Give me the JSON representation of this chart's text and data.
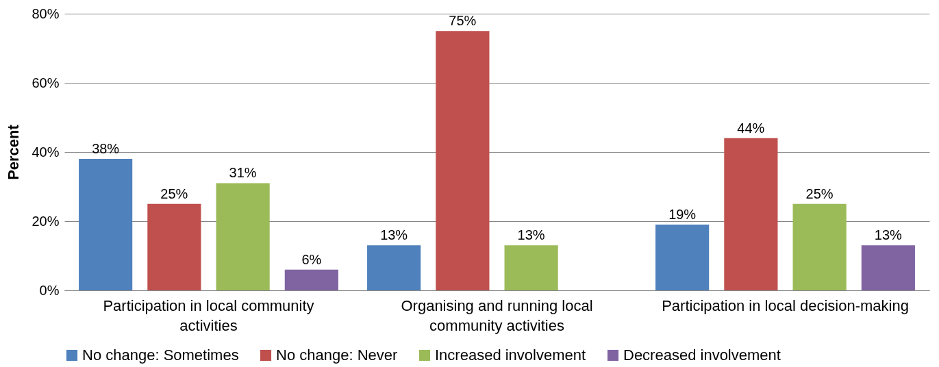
{
  "chart_data": {
    "type": "bar",
    "ylabel": "Percent",
    "categories": [
      "Participation in local community activities",
      "Organising and running local community activities",
      "Participation in local decision-making"
    ],
    "series": [
      {
        "name": "No change: Sometimes",
        "color": "#4f81bd",
        "values": [
          38,
          13,
          19
        ],
        "value_labels": [
          "38%",
          "13%",
          "19%"
        ]
      },
      {
        "name": "No change: Never",
        "color": "#c0504d",
        "values": [
          25,
          75,
          44
        ],
        "value_labels": [
          "25%",
          "75%",
          "44%"
        ]
      },
      {
        "name": "Increased involvement",
        "color": "#9bbb59",
        "values": [
          31,
          13,
          25
        ],
        "value_labels": [
          "31%",
          "13%",
          "25%"
        ]
      },
      {
        "name": "Decreased involvement",
        "color": "#8064a2",
        "values": [
          6,
          null,
          13
        ],
        "value_labels": [
          "6%",
          null,
          "13%"
        ]
      }
    ],
    "ylim": [
      0,
      80
    ],
    "yticks": [
      {
        "value": 0,
        "label": "0%"
      },
      {
        "value": 20,
        "label": "20%"
      },
      {
        "value": 40,
        "label": "40%"
      },
      {
        "value": 60,
        "label": "60%"
      },
      {
        "value": 80,
        "label": "80%"
      }
    ],
    "grid": "y",
    "legend": "bottom"
  }
}
